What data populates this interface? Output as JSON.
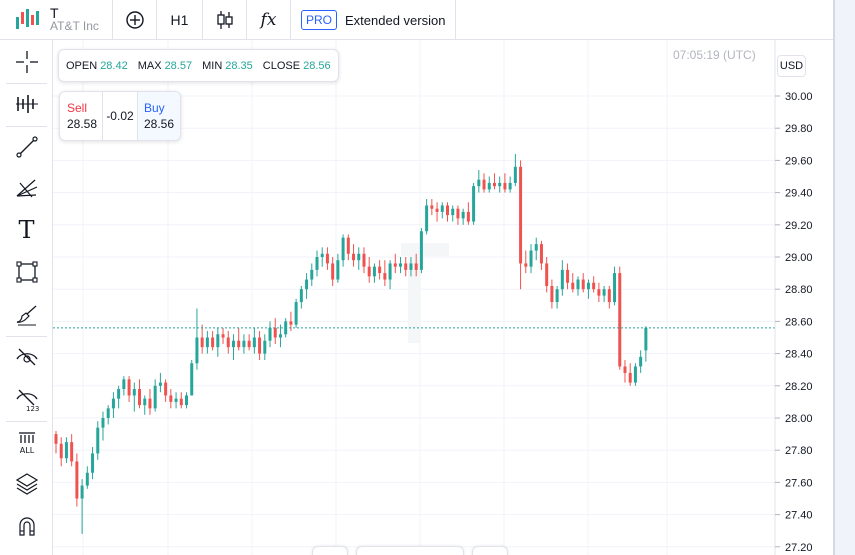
{
  "header": {
    "ticker": "T",
    "company": "AT&T Inc",
    "interval": "H1",
    "indicators_glyph": "fx",
    "pro_badge": "PRO",
    "extended_label": "Extended version"
  },
  "left_tools": [
    {
      "name": "crosshair-icon"
    },
    {
      "name": "indicator-bars-icon"
    },
    {
      "name": "trend-line-icon"
    },
    {
      "name": "fib-tools-icon"
    },
    {
      "name": "text-tool-icon",
      "glyph": "T"
    },
    {
      "name": "shape-rectangle-icon"
    },
    {
      "name": "brush-icon"
    },
    {
      "name": "hide-drawings-icon"
    },
    {
      "name": "hide-indicators-icon"
    },
    {
      "name": "delete-all-icon",
      "label": "ALL"
    },
    {
      "name": "layers-icon"
    },
    {
      "name": "magnet-icon"
    }
  ],
  "ohlc": {
    "open_label": "OPEN",
    "open": "28.42",
    "max_label": "MAX",
    "max": "28.57",
    "min_label": "MIN",
    "min": "28.35",
    "close_label": "CLOSE",
    "close": "28.56"
  },
  "trade": {
    "sell_label": "Sell",
    "sell_price": "28.58",
    "spread": "-0.02",
    "buy_label": "Buy",
    "buy_price": "28.56"
  },
  "clock": "07:05:19 (UTC)",
  "currency": "USD",
  "colors": {
    "up": "#26a69a",
    "down": "#ef5350",
    "price_line": "#26a69a",
    "grid": "#f0f3fa",
    "accent": "#2962ff"
  },
  "chart_data": {
    "type": "candlestick",
    "ylim": [
      27.2,
      30.1
    ],
    "y_ticks": [
      "30.00",
      "29.80",
      "29.60",
      "29.40",
      "29.20",
      "29.00",
      "28.80",
      "28.60",
      "28.40",
      "28.20",
      "28.00",
      "27.80",
      "27.60",
      "27.40",
      "27.20"
    ],
    "current_price": 28.56,
    "candles": [
      [
        27.9,
        27.92,
        27.78,
        27.84
      ],
      [
        27.84,
        27.88,
        27.7,
        27.75
      ],
      [
        27.75,
        27.88,
        27.72,
        27.85
      ],
      [
        27.85,
        27.9,
        27.7,
        27.73
      ],
      [
        27.73,
        27.78,
        27.45,
        27.5
      ],
      [
        27.5,
        27.62,
        27.28,
        27.58
      ],
      [
        27.58,
        27.7,
        27.56,
        27.66
      ],
      [
        27.66,
        27.82,
        27.62,
        27.78
      ],
      [
        27.78,
        27.98,
        27.74,
        27.94
      ],
      [
        27.94,
        28.04,
        27.86,
        28.0
      ],
      [
        28.0,
        28.08,
        27.96,
        28.06
      ],
      [
        28.06,
        28.16,
        28.0,
        28.12
      ],
      [
        28.12,
        28.2,
        28.06,
        28.18
      ],
      [
        28.18,
        28.26,
        28.14,
        28.24
      ],
      [
        28.24,
        28.26,
        28.1,
        28.14
      ],
      [
        28.14,
        28.22,
        28.04,
        28.18
      ],
      [
        28.18,
        28.24,
        28.06,
        28.08
      ],
      [
        28.08,
        28.14,
        28.02,
        28.12
      ],
      [
        28.12,
        28.18,
        28.02,
        28.06
      ],
      [
        28.06,
        28.24,
        28.04,
        28.2
      ],
      [
        28.2,
        28.28,
        28.16,
        28.22
      ],
      [
        28.22,
        28.24,
        28.1,
        28.14
      ],
      [
        28.14,
        28.18,
        28.06,
        28.1
      ],
      [
        28.1,
        28.16,
        28.06,
        28.12
      ],
      [
        28.12,
        28.16,
        28.06,
        28.08
      ],
      [
        28.08,
        28.16,
        28.06,
        28.14
      ],
      [
        28.14,
        28.36,
        28.14,
        28.34
      ],
      [
        28.34,
        28.68,
        28.3,
        28.5
      ],
      [
        28.5,
        28.58,
        28.4,
        28.44
      ],
      [
        28.44,
        28.54,
        28.4,
        28.5
      ],
      [
        28.5,
        28.54,
        28.42,
        28.44
      ],
      [
        28.44,
        28.56,
        28.38,
        28.52
      ],
      [
        28.52,
        28.56,
        28.46,
        28.5
      ],
      [
        28.5,
        28.54,
        28.4,
        28.44
      ],
      [
        28.44,
        28.52,
        28.36,
        28.48
      ],
      [
        28.48,
        28.56,
        28.42,
        28.44
      ],
      [
        28.44,
        28.52,
        28.4,
        28.48
      ],
      [
        28.48,
        28.52,
        28.42,
        28.44
      ],
      [
        28.44,
        28.56,
        28.4,
        28.5
      ],
      [
        28.5,
        28.54,
        28.36,
        28.4
      ],
      [
        28.4,
        28.52,
        28.36,
        28.48
      ],
      [
        28.48,
        28.6,
        28.44,
        28.56
      ],
      [
        28.56,
        28.62,
        28.46,
        28.5
      ],
      [
        28.5,
        28.58,
        28.44,
        28.52
      ],
      [
        28.52,
        28.62,
        28.5,
        28.6
      ],
      [
        28.6,
        28.66,
        28.54,
        28.58
      ],
      [
        28.58,
        28.74,
        28.56,
        28.72
      ],
      [
        28.72,
        28.82,
        28.68,
        28.8
      ],
      [
        28.8,
        28.9,
        28.74,
        28.86
      ],
      [
        28.86,
        28.96,
        28.82,
        28.92
      ],
      [
        28.92,
        29.04,
        28.88,
        29.0
      ],
      [
        29.0,
        29.06,
        28.94,
        29.02
      ],
      [
        29.02,
        29.06,
        28.92,
        28.96
      ],
      [
        28.96,
        29.0,
        28.82,
        28.86
      ],
      [
        28.86,
        29.02,
        28.84,
        28.98
      ],
      [
        28.98,
        29.14,
        28.94,
        29.12
      ],
      [
        29.12,
        29.14,
        28.98,
        29.02
      ],
      [
        29.02,
        29.08,
        28.94,
        28.98
      ],
      [
        28.98,
        29.06,
        28.92,
        29.02
      ],
      [
        29.02,
        29.06,
        28.9,
        28.94
      ],
      [
        28.94,
        29.0,
        28.84,
        28.88
      ],
      [
        28.88,
        28.96,
        28.84,
        28.94
      ],
      [
        28.94,
        28.98,
        28.86,
        28.9
      ],
      [
        28.9,
        28.98,
        28.82,
        28.86
      ],
      [
        28.86,
        28.98,
        28.8,
        28.96
      ],
      [
        28.96,
        29.02,
        28.9,
        28.94
      ],
      [
        28.94,
        29.0,
        28.9,
        28.96
      ],
      [
        28.96,
        29.0,
        28.88,
        28.92
      ],
      [
        28.92,
        29.0,
        28.88,
        28.96
      ],
      [
        28.96,
        29.02,
        28.88,
        28.92
      ],
      [
        28.92,
        29.18,
        28.9,
        29.16
      ],
      [
        29.16,
        29.36,
        29.14,
        29.32
      ],
      [
        29.32,
        29.36,
        29.26,
        29.3
      ],
      [
        29.3,
        29.34,
        29.22,
        29.28
      ],
      [
        29.28,
        29.34,
        29.24,
        29.32
      ],
      [
        29.32,
        29.34,
        29.22,
        29.26
      ],
      [
        29.26,
        29.32,
        29.22,
        29.3
      ],
      [
        29.3,
        29.32,
        29.2,
        29.24
      ],
      [
        29.24,
        29.3,
        29.2,
        29.28
      ],
      [
        29.28,
        29.34,
        29.2,
        29.22
      ],
      [
        29.22,
        29.46,
        29.2,
        29.44
      ],
      [
        29.44,
        29.54,
        29.4,
        29.48
      ],
      [
        29.48,
        29.52,
        29.4,
        29.42
      ],
      [
        29.42,
        29.5,
        29.4,
        29.46
      ],
      [
        29.46,
        29.52,
        29.42,
        29.44
      ],
      [
        29.44,
        29.5,
        29.4,
        29.46
      ],
      [
        29.46,
        29.52,
        29.4,
        29.42
      ],
      [
        29.42,
        29.5,
        29.4,
        29.46
      ],
      [
        29.46,
        29.64,
        29.44,
        29.56
      ],
      [
        29.56,
        29.6,
        28.8,
        28.96
      ],
      [
        28.96,
        29.04,
        28.9,
        28.94
      ],
      [
        28.94,
        29.08,
        28.9,
        29.04
      ],
      [
        29.04,
        29.12,
        28.98,
        29.08
      ],
      [
        29.08,
        29.1,
        28.92,
        28.96
      ],
      [
        28.96,
        29.0,
        28.78,
        28.82
      ],
      [
        28.82,
        28.86,
        28.68,
        28.72
      ],
      [
        28.72,
        28.82,
        28.68,
        28.8
      ],
      [
        28.8,
        28.98,
        28.76,
        28.92
      ],
      [
        28.92,
        28.96,
        28.8,
        28.84
      ],
      [
        28.84,
        28.9,
        28.78,
        28.8
      ],
      [
        28.8,
        28.88,
        28.76,
        28.86
      ],
      [
        28.86,
        28.9,
        28.78,
        28.8
      ],
      [
        28.8,
        28.86,
        28.74,
        28.84
      ],
      [
        28.84,
        28.88,
        28.78,
        28.8
      ],
      [
        28.8,
        28.84,
        28.72,
        28.76
      ],
      [
        28.76,
        28.82,
        28.72,
        28.8
      ],
      [
        28.8,
        28.82,
        28.68,
        28.72
      ],
      [
        28.72,
        28.94,
        28.7,
        28.9
      ],
      [
        28.9,
        28.94,
        28.3,
        28.32
      ],
      [
        28.32,
        28.36,
        28.22,
        28.28
      ],
      [
        28.28,
        28.34,
        28.2,
        28.22
      ],
      [
        28.22,
        28.34,
        28.2,
        28.32
      ],
      [
        28.32,
        28.42,
        28.28,
        28.38
      ],
      [
        28.42,
        28.57,
        28.35,
        28.56
      ]
    ]
  }
}
